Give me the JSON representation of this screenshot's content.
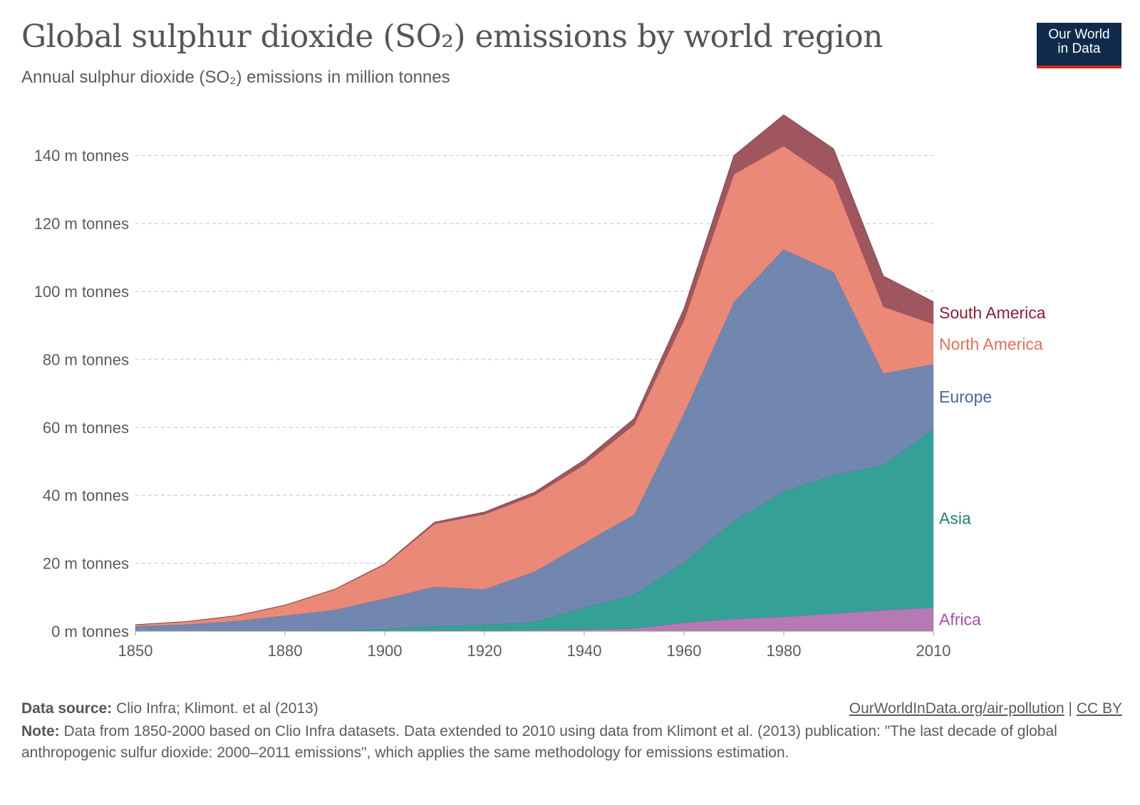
{
  "header": {
    "title": "Global sulphur dioxide (SO₂) emissions by world region",
    "subtitle": "Annual sulphur dioxide (SO₂) emissions in million tonnes",
    "logo_line1": "Our World",
    "logo_line2": "in Data"
  },
  "footer": {
    "source_label": "Data source:",
    "source_text": "Clio Infra; Klimont. et al (2013)",
    "url_text": "OurWorldInData.org/air-pollution",
    "separator": "|",
    "license_text": "CC BY",
    "note_label": "Note:",
    "note_text": "Data from 1850-2000 based on Clio Infra datasets. Data extended to 2010 using data from Klimont et al. (2013) publication: \"The last decade of global anthropogenic sulfur dioxide: 2000–2011 emissions\", which applies the same methodology for emissions estimation."
  },
  "colors": {
    "Africa": "#b579b5",
    "Asia": "#35a196",
    "Europe": "#7187b0",
    "North America": "#eb8978",
    "South America": "#a0565e",
    "label_Africa": "#a94da8",
    "label_Asia": "#1f8176",
    "label_Europe": "#4b659e",
    "label_North America": "#e0705d",
    "label_South America": "#862037",
    "grid": "#d7d7d7",
    "axis_text": "#5b5b5b"
  },
  "chart_data": {
    "type": "area",
    "stacked": true,
    "x": [
      1850,
      1860,
      1870,
      1880,
      1890,
      1900,
      1910,
      1920,
      1930,
      1940,
      1950,
      1960,
      1970,
      1980,
      1990,
      2000,
      2010
    ],
    "series": [
      {
        "name": "Africa",
        "values": [
          0,
          0,
          0,
          0,
          0.1,
          0.1,
          0.2,
          0.2,
          0.3,
          0.5,
          0.8,
          2.5,
          3.6,
          4.3,
          5.2,
          6.2,
          7.0
        ]
      },
      {
        "name": "Asia",
        "values": [
          0,
          0,
          0,
          0.1,
          0.2,
          0.5,
          1.3,
          1.7,
          2.4,
          6.4,
          10.0,
          17.6,
          28.8,
          36.8,
          40.7,
          42.7,
          52.4
        ]
      },
      {
        "name": "Europe",
        "values": [
          1.5,
          2.0,
          3.0,
          4.5,
          6.0,
          9.0,
          11.6,
          10.5,
          14.8,
          19.1,
          23.5,
          44.0,
          64.5,
          71.3,
          59.8,
          27.0,
          19.2
        ]
      },
      {
        "name": "North America",
        "values": [
          0.4,
          0.8,
          1.5,
          3.0,
          6.0,
          10.0,
          18.5,
          22.0,
          22.5,
          23.0,
          26.5,
          27.4,
          37.6,
          30.4,
          27.0,
          19.6,
          11.8
        ]
      },
      {
        "name": "South America",
        "values": [
          0,
          0,
          0,
          0.1,
          0.1,
          0.2,
          0.5,
          0.7,
          0.9,
          1.4,
          1.8,
          3.5,
          5.5,
          9.2,
          9.3,
          9.0,
          6.6
        ]
      }
    ],
    "y_ticks": [
      0,
      20,
      40,
      60,
      80,
      100,
      120,
      140
    ],
    "y_tick_labels": [
      "0 m tonnes",
      "20 m tonnes",
      "40 m tonnes",
      "60 m tonnes",
      "80 m tonnes",
      "100 m tonnes",
      "120 m tonnes",
      "140 m tonnes"
    ],
    "x_ticks": [
      1850,
      1880,
      1900,
      1920,
      1940,
      1960,
      1980,
      2010
    ],
    "x_tick_labels": [
      "1850",
      "1880",
      "1900",
      "1920",
      "1940",
      "1960",
      "1980",
      "2010"
    ],
    "ylim": [
      0,
      150
    ],
    "xlim": [
      1850,
      2010
    ],
    "legend_placement": "right, inline labels",
    "grid": "horizontal dashed"
  }
}
